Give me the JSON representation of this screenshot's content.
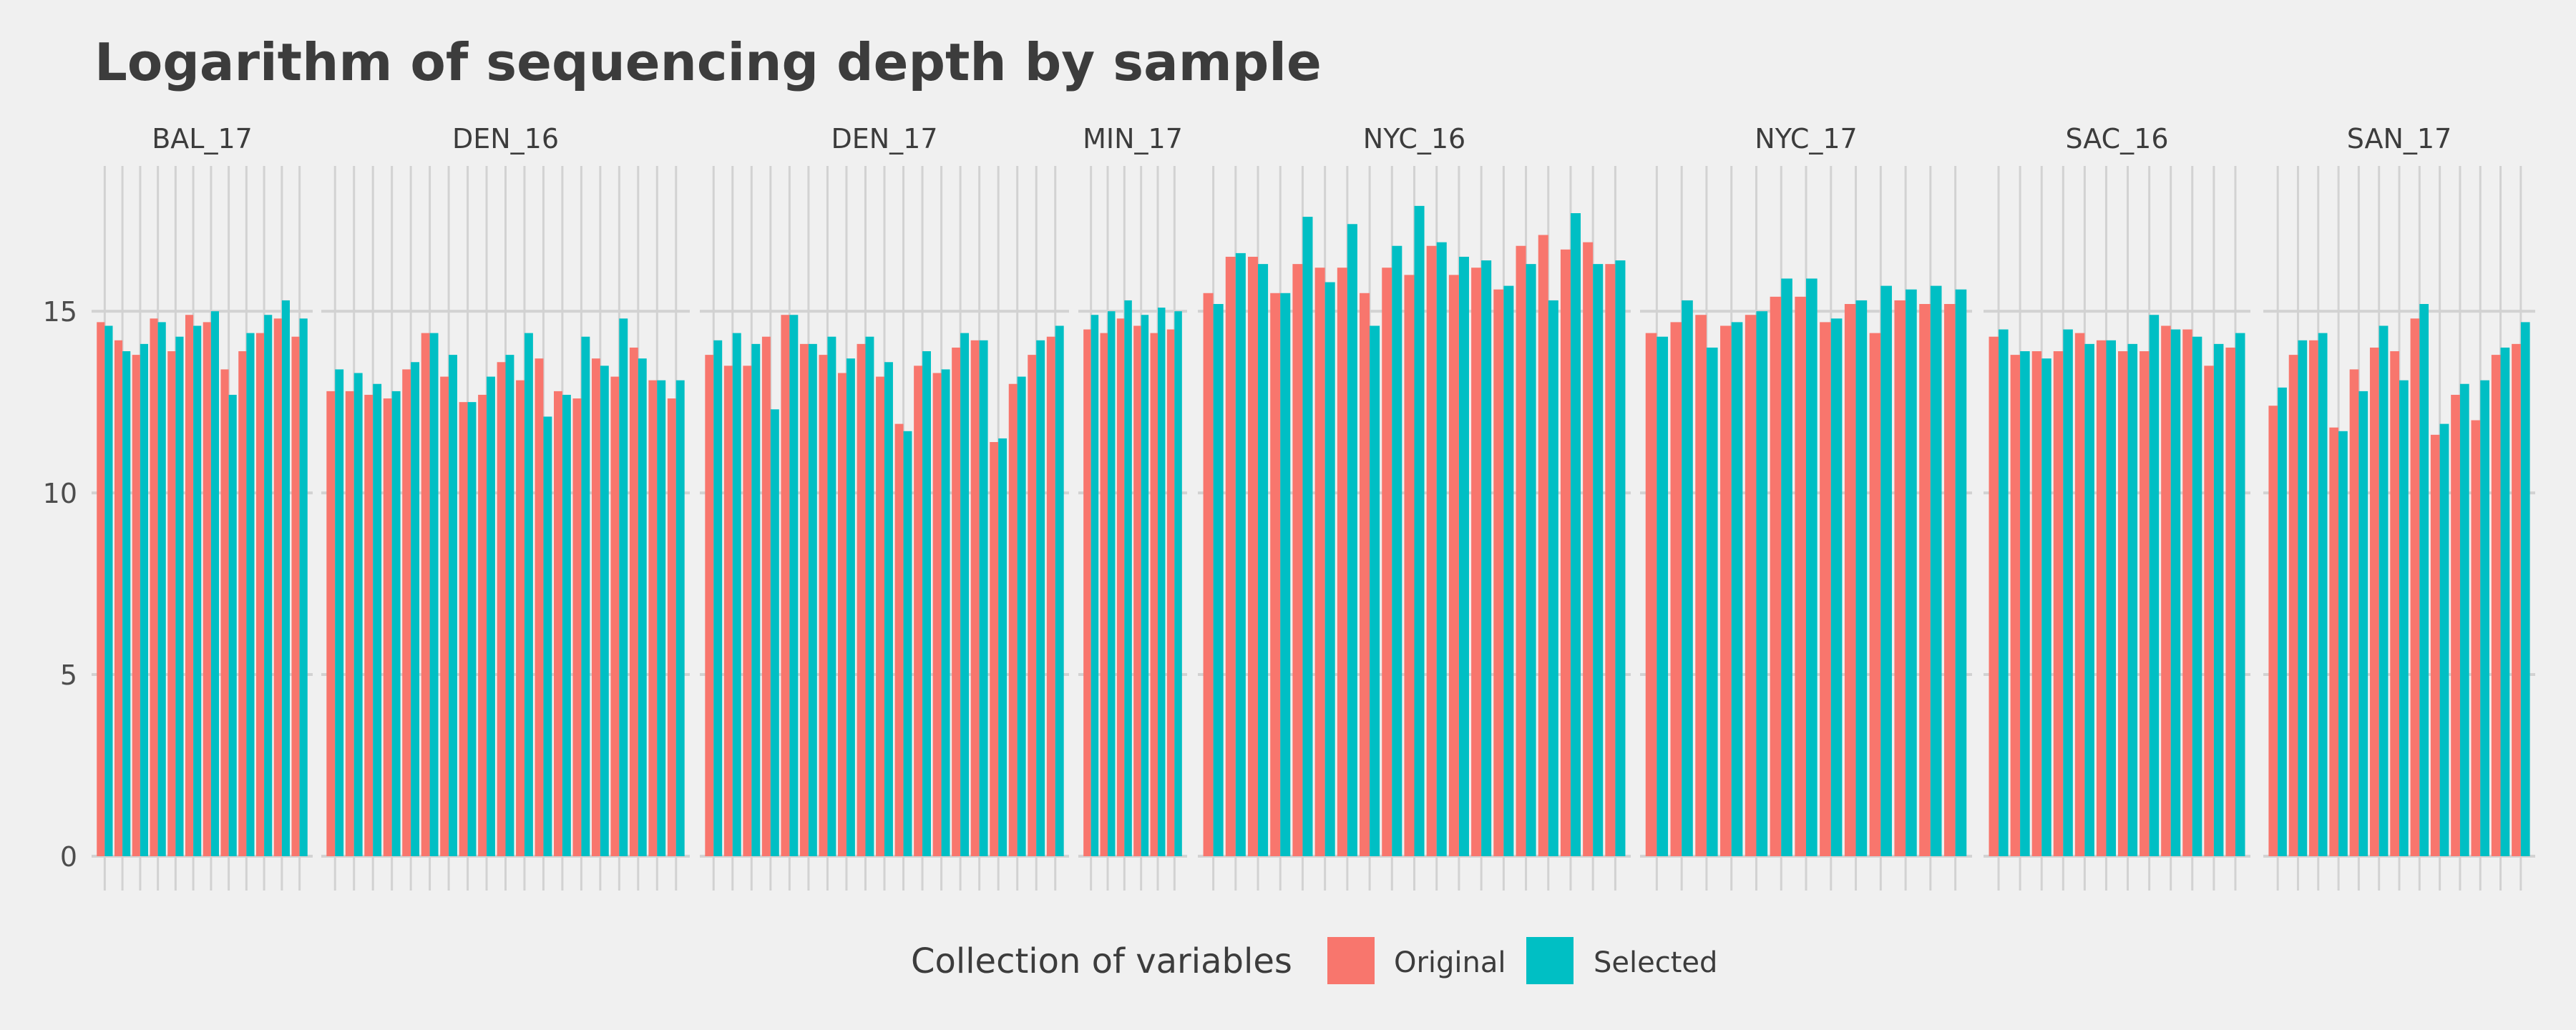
{
  "colors": {
    "background": "#f0f0f0",
    "gridline": "#d2d2d2",
    "original": "#f8766d",
    "selected": "#00bfc4",
    "text": "#3c3c3c"
  },
  "chart_data": {
    "type": "bar",
    "title": "Logarithm of sequencing depth by sample",
    "xlabel": "",
    "ylabel": "",
    "ylim": [
      0,
      19
    ],
    "y_ticks": [
      0,
      5,
      10,
      15
    ],
    "grid": true,
    "legend": {
      "title": "Collection of variables",
      "placement": "bottom",
      "entries": [
        "Original",
        "Selected"
      ]
    },
    "facets": [
      {
        "label": "BAL_17",
        "original": [
          14.7,
          14.2,
          13.8,
          14.8,
          13.9,
          14.9,
          14.7,
          13.4,
          13.9,
          14.4,
          14.8,
          14.3
        ],
        "selected": [
          14.6,
          13.9,
          14.1,
          14.7,
          14.3,
          14.6,
          15.0,
          12.7,
          14.4,
          14.9,
          15.3,
          14.8
        ]
      },
      {
        "label": "DEN_16",
        "original": [
          12.8,
          12.8,
          12.7,
          12.6,
          13.4,
          14.4,
          13.2,
          12.5,
          12.7,
          13.6,
          13.1,
          13.7,
          12.8,
          12.6,
          13.7,
          13.2,
          14.0,
          13.1,
          12.6
        ],
        "selected": [
          13.4,
          13.3,
          13.0,
          12.8,
          13.6,
          14.4,
          13.8,
          12.5,
          13.2,
          13.8,
          14.4,
          12.1,
          12.7,
          14.3,
          13.5,
          14.8,
          13.7,
          13.1,
          13.1
        ]
      },
      {
        "label": "DEN_17",
        "original": [
          13.8,
          13.5,
          13.5,
          14.3,
          14.9,
          14.1,
          13.8,
          13.3,
          14.1,
          13.2,
          11.9,
          13.5,
          13.3,
          14.0,
          14.2,
          11.4,
          13.0,
          13.8,
          14.3
        ],
        "selected": [
          14.2,
          14.4,
          14.1,
          12.3,
          14.9,
          14.1,
          14.3,
          13.7,
          14.3,
          13.6,
          11.7,
          13.9,
          13.4,
          14.4,
          14.2,
          11.5,
          13.2,
          14.2,
          14.6
        ]
      },
      {
        "label": "MIN_17",
        "original": [
          14.5,
          14.4,
          14.8,
          14.6,
          14.4,
          14.5
        ],
        "selected": [
          14.9,
          15.0,
          15.3,
          14.9,
          15.1,
          15.0
        ]
      },
      {
        "label": "NYC_16",
        "original": [
          15.5,
          16.5,
          16.5,
          15.5,
          16.3,
          16.2,
          16.2,
          15.5,
          16.2,
          16.0,
          16.8,
          16.0,
          16.2,
          15.6,
          16.8,
          17.1,
          16.7,
          16.9,
          16.3
        ],
        "selected": [
          15.2,
          16.6,
          16.3,
          15.5,
          17.6,
          15.8,
          17.4,
          14.6,
          16.8,
          17.9,
          16.9,
          16.5,
          16.4,
          15.7,
          16.3,
          15.3,
          17.7,
          16.3,
          16.4
        ]
      },
      {
        "label": "NYC_17",
        "original": [
          14.4,
          14.7,
          14.9,
          14.6,
          14.9,
          15.4,
          15.4,
          14.7,
          15.2,
          14.4,
          15.3,
          15.2,
          15.2
        ],
        "selected": [
          14.3,
          15.3,
          14.0,
          14.7,
          15.0,
          15.9,
          15.9,
          14.8,
          15.3,
          15.7,
          15.6,
          15.7,
          15.6
        ]
      },
      {
        "label": "SAC_16",
        "original": [
          14.3,
          13.8,
          13.9,
          13.9,
          14.4,
          14.2,
          13.9,
          13.9,
          14.6,
          14.5,
          13.5,
          14.0
        ],
        "selected": [
          14.5,
          13.9,
          13.7,
          14.5,
          14.1,
          14.2,
          14.1,
          14.9,
          14.5,
          14.3,
          14.1,
          14.4
        ]
      },
      {
        "label": "SAN_17",
        "original": [
          12.4,
          13.8,
          14.2,
          11.8,
          13.4,
          14.0,
          13.9,
          14.8,
          11.6,
          12.7,
          12.0,
          13.8,
          14.1
        ],
        "selected": [
          12.9,
          14.2,
          14.4,
          11.7,
          12.8,
          14.6,
          13.1,
          15.2,
          11.9,
          13.0,
          13.1,
          14.0,
          14.7
        ]
      }
    ]
  }
}
